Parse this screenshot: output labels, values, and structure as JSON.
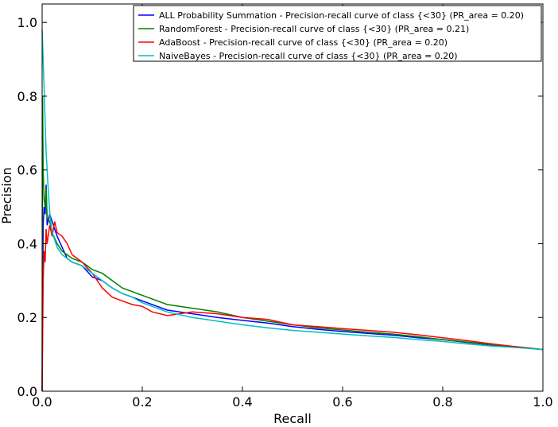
{
  "chart_data": {
    "type": "line",
    "title": "",
    "xlabel": "Recall",
    "ylabel": "Precision",
    "xlim": [
      0.0,
      1.0
    ],
    "ylim": [
      0.0,
      1.05
    ],
    "xticks": [
      "0.0",
      "0.2",
      "0.4",
      "0.6",
      "0.8",
      "1.0"
    ],
    "yticks": [
      "0.0",
      "0.2",
      "0.4",
      "0.6",
      "0.8",
      "1.0"
    ],
    "grid": false,
    "legend_position": "top-right",
    "series": [
      {
        "name": "ALL Probability Summation - Precision-recall curve of class {<30} (PR_area = 0.20)",
        "color": "#0000ff",
        "x": [
          0.0,
          0.002,
          0.004,
          0.006,
          0.008,
          0.01,
          0.015,
          0.02,
          0.03,
          0.04,
          0.05,
          0.06,
          0.08,
          0.1,
          0.12,
          0.14,
          0.16,
          0.18,
          0.2,
          0.25,
          0.3,
          0.35,
          0.4,
          0.45,
          0.5,
          0.55,
          0.6,
          0.65,
          0.7,
          0.75,
          0.8,
          0.85,
          0.9,
          0.95,
          1.0
        ],
        "y": [
          0.0,
          0.45,
          0.5,
          0.48,
          0.56,
          0.45,
          0.48,
          0.46,
          0.42,
          0.39,
          0.36,
          0.35,
          0.34,
          0.31,
          0.3,
          0.28,
          0.265,
          0.255,
          0.245,
          0.22,
          0.21,
          0.2,
          0.192,
          0.185,
          0.175,
          0.168,
          0.162,
          0.157,
          0.152,
          0.145,
          0.14,
          0.132,
          0.125,
          0.12,
          0.113
        ]
      },
      {
        "name": "RandomForest - Precision-recall curve of class {<30} (PR_area = 0.21)",
        "color": "#008000",
        "x": [
          0.0,
          0.001,
          0.002,
          0.004,
          0.006,
          0.008,
          0.01,
          0.015,
          0.02,
          0.03,
          0.04,
          0.05,
          0.06,
          0.08,
          0.1,
          0.12,
          0.14,
          0.16,
          0.18,
          0.2,
          0.25,
          0.3,
          0.35,
          0.4,
          0.45,
          0.5,
          0.55,
          0.6,
          0.65,
          0.7,
          0.75,
          0.8,
          0.85,
          0.9,
          0.95,
          1.0
        ],
        "y": [
          0.0,
          0.8,
          0.6,
          0.52,
          0.5,
          0.55,
          0.47,
          0.46,
          0.43,
          0.4,
          0.38,
          0.37,
          0.36,
          0.35,
          0.33,
          0.32,
          0.3,
          0.28,
          0.27,
          0.26,
          0.235,
          0.225,
          0.215,
          0.2,
          0.19,
          0.18,
          0.172,
          0.166,
          0.16,
          0.155,
          0.148,
          0.14,
          0.133,
          0.126,
          0.12,
          0.113
        ]
      },
      {
        "name": "AdaBoost - Precision-recall curve of class {<30} (PR_area = 0.20)",
        "color": "#ff0000",
        "x": [
          0.0,
          0.002,
          0.004,
          0.006,
          0.008,
          0.01,
          0.015,
          0.02,
          0.025,
          0.03,
          0.04,
          0.05,
          0.06,
          0.08,
          0.1,
          0.12,
          0.14,
          0.16,
          0.18,
          0.2,
          0.22,
          0.25,
          0.3,
          0.35,
          0.4,
          0.45,
          0.5,
          0.55,
          0.6,
          0.65,
          0.7,
          0.75,
          0.8,
          0.85,
          0.9,
          0.95,
          1.0
        ],
        "y": [
          0.0,
          0.3,
          0.38,
          0.35,
          0.44,
          0.4,
          0.45,
          0.42,
          0.46,
          0.43,
          0.42,
          0.4,
          0.37,
          0.35,
          0.32,
          0.28,
          0.255,
          0.245,
          0.235,
          0.23,
          0.215,
          0.205,
          0.215,
          0.21,
          0.2,
          0.195,
          0.18,
          0.175,
          0.17,
          0.165,
          0.16,
          0.153,
          0.145,
          0.137,
          0.128,
          0.12,
          0.113
        ]
      },
      {
        "name": "NaiveBayes - Precision-recall curve of class {<30} (PR_area = 0.20)",
        "color": "#00bfbf",
        "x": [
          0.0,
          0.004,
          0.008,
          0.012,
          0.016,
          0.02,
          0.025,
          0.03,
          0.04,
          0.05,
          0.06,
          0.08,
          0.1,
          0.12,
          0.14,
          0.16,
          0.18,
          0.2,
          0.25,
          0.3,
          0.35,
          0.4,
          0.45,
          0.5,
          0.55,
          0.6,
          0.65,
          0.7,
          0.75,
          0.8,
          0.85,
          0.9,
          0.95,
          1.0
        ],
        "y": [
          0.98,
          0.82,
          0.65,
          0.55,
          0.47,
          0.43,
          0.41,
          0.39,
          0.37,
          0.36,
          0.35,
          0.34,
          0.32,
          0.3,
          0.28,
          0.265,
          0.255,
          0.24,
          0.215,
          0.2,
          0.19,
          0.18,
          0.172,
          0.165,
          0.16,
          0.155,
          0.15,
          0.146,
          0.14,
          0.135,
          0.128,
          0.122,
          0.118,
          0.113
        ]
      }
    ]
  }
}
